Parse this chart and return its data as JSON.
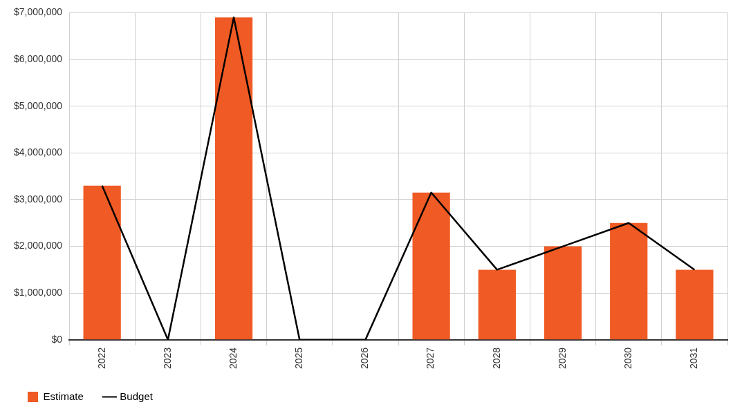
{
  "chart_data": {
    "type": "bar",
    "categories": [
      "2022",
      "2023",
      "2024",
      "2025",
      "2026",
      "2027",
      "2028",
      "2029",
      "2030",
      "2031"
    ],
    "series": [
      {
        "name": "Estimate",
        "color": "#f05a24",
        "values": [
          3300000,
          0,
          6900000,
          0,
          0,
          3150000,
          1500000,
          2000000,
          2500000,
          1500000
        ]
      },
      {
        "name": "Budget",
        "type": "line",
        "color": "#000000",
        "values": [
          3300000,
          0,
          6900000,
          0,
          0,
          3150000,
          1500000,
          2000000,
          2500000,
          1500000
        ]
      }
    ],
    "ylim": [
      0,
      7000000
    ],
    "yticks": [
      {
        "value": 0,
        "label": "$0"
      },
      {
        "value": 1000000,
        "label": "$1,000,000"
      },
      {
        "value": 2000000,
        "label": "$2,000,000"
      },
      {
        "value": 3000000,
        "label": "$3,000,000"
      },
      {
        "value": 4000000,
        "label": "$4,000,000"
      },
      {
        "value": 5000000,
        "label": "$5,000,000"
      },
      {
        "value": 6000000,
        "label": "$6,000,000"
      },
      {
        "value": 7000000,
        "label": "$7,000,000"
      }
    ],
    "grid": true,
    "legend": "bottom left",
    "marker": "none"
  }
}
